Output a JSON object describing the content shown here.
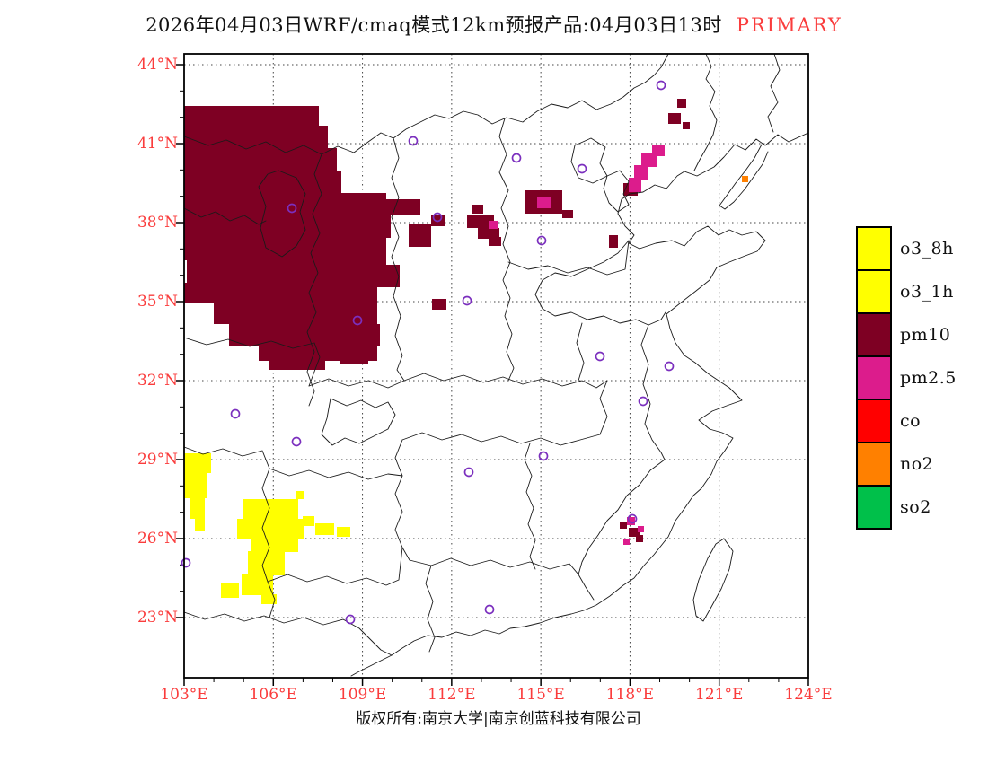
{
  "title": {
    "main": "2026年04月03日WRF/cmaq模式12km预报产品:04月03日13时",
    "tag": "PRIMARY",
    "tag_color": "#FA3C3C"
  },
  "footer": {
    "text": "版权所有:南京大学|南京创蓝科技有限公司"
  },
  "axes": {
    "label_color": "#FA3C3C",
    "grid_interval_deg": 3,
    "lat_labels": [
      "44°N",
      "41°N",
      "38°N",
      "35°N",
      "32°N",
      "29°N",
      "26°N",
      "23°N"
    ],
    "lon_labels": [
      "103°E",
      "106°E",
      "109°E",
      "112°E",
      "115°E",
      "118°E",
      "121°E",
      "124°E"
    ]
  },
  "legend": {
    "items": [
      {
        "label": "o3_8h",
        "color": "#FFFF00"
      },
      {
        "label": "o3_1h",
        "color": "#FFFF00"
      },
      {
        "label": "pm10",
        "color": "#7E0023"
      },
      {
        "label": "pm2.5",
        "color": "#DC1C8C"
      },
      {
        "label": "co",
        "color": "#FF0000"
      },
      {
        "label": "no2",
        "color": "#FF8000"
      },
      {
        "label": "so2",
        "color": "#00C04A"
      }
    ]
  },
  "map": {
    "marker_color": "#7B2FBE",
    "markers": [
      [
        736,
        95
      ],
      [
        460,
        157
      ],
      [
        575,
        176
      ],
      [
        648,
        188
      ],
      [
        325,
        232
      ],
      [
        487,
        242
      ],
      [
        603,
        268
      ],
      [
        520,
        335
      ],
      [
        398,
        357
      ],
      [
        668,
        397
      ],
      [
        745,
        408
      ],
      [
        716,
        447
      ],
      [
        262,
        461
      ],
      [
        330,
        492
      ],
      [
        522,
        526
      ],
      [
        605,
        508
      ],
      [
        704,
        578
      ],
      [
        207,
        627
      ],
      [
        390,
        690
      ],
      [
        545,
        679
      ]
    ],
    "patches": [
      {
        "pollutant": "pm10",
        "color": "#7E0023",
        "rects": [
          [
            205,
            118,
            150,
            22
          ],
          [
            205,
            140,
            160,
            25
          ],
          [
            205,
            165,
            170,
            25
          ],
          [
            205,
            190,
            175,
            25
          ],
          [
            205,
            215,
            225,
            25
          ],
          [
            430,
            222,
            38,
            18
          ],
          [
            205,
            240,
            230,
            25
          ],
          [
            455,
            250,
            25,
            25
          ],
          [
            205,
            265,
            225,
            25
          ],
          [
            208,
            290,
            222,
            25
          ],
          [
            395,
            295,
            50,
            25
          ],
          [
            205,
            315,
            215,
            22
          ],
          [
            238,
            337,
            182,
            24
          ],
          [
            255,
            361,
            168,
            24
          ],
          [
            288,
            385,
            132,
            17
          ],
          [
            300,
            402,
            62,
            10
          ],
          [
            378,
            394,
            32,
            12
          ],
          [
            480,
            240,
            16,
            12
          ],
          [
            466,
            262,
            12,
            12
          ],
          [
            481,
            333,
            16,
            12
          ],
          [
            526,
            228,
            12,
            10
          ],
          [
            520,
            240,
            30,
            14
          ],
          [
            532,
            254,
            24,
            12
          ],
          [
            544,
            264,
            14,
            10
          ],
          [
            584,
            212,
            42,
            26
          ],
          [
            626,
            234,
            12,
            9
          ],
          [
            678,
            262,
            10,
            14
          ],
          [
            694,
            204,
            16,
            14
          ],
          [
            744,
            126,
            14,
            12
          ],
          [
            754,
            110,
            10,
            10
          ],
          [
            760,
            136,
            8,
            8
          ],
          [
            700,
            588,
            12,
            10
          ],
          [
            708,
            596,
            8,
            8
          ],
          [
            690,
            582,
            8,
            7
          ]
        ]
      },
      {
        "pollutant": "pm2.5",
        "color": "#DC1C8C",
        "rects": [
          [
            700,
            198,
            14,
            16
          ],
          [
            706,
            184,
            16,
            16
          ],
          [
            714,
            170,
            18,
            16
          ],
          [
            726,
            162,
            14,
            12
          ],
          [
            598,
            220,
            16,
            12
          ],
          [
            544,
            246,
            10,
            9
          ],
          [
            698,
            576,
            9,
            9
          ],
          [
            710,
            586,
            7,
            7
          ],
          [
            694,
            600,
            7,
            7
          ]
        ]
      },
      {
        "pollutant": "o3",
        "color": "#FFFF00",
        "rects": [
          [
            205,
            505,
            30,
            22
          ],
          [
            205,
            527,
            25,
            28
          ],
          [
            211,
            555,
            17,
            23
          ],
          [
            217,
            578,
            11,
            14
          ],
          [
            246,
            650,
            20,
            16
          ],
          [
            270,
            556,
            62,
            23
          ],
          [
            264,
            578,
            75,
            23
          ],
          [
            279,
            600,
            53,
            15
          ],
          [
            276,
            614,
            41,
            27
          ],
          [
            269,
            640,
            35,
            23
          ],
          [
            291,
            662,
            17,
            11
          ],
          [
            337,
            575,
            13,
            11
          ],
          [
            351,
            583,
            21,
            13
          ],
          [
            375,
            587,
            15,
            11
          ],
          [
            330,
            547,
            9,
            9
          ]
        ]
      },
      {
        "pollutant": "no2",
        "color": "#FF8000",
        "rects": [
          [
            826,
            196,
            7,
            7
          ]
        ]
      }
    ]
  }
}
